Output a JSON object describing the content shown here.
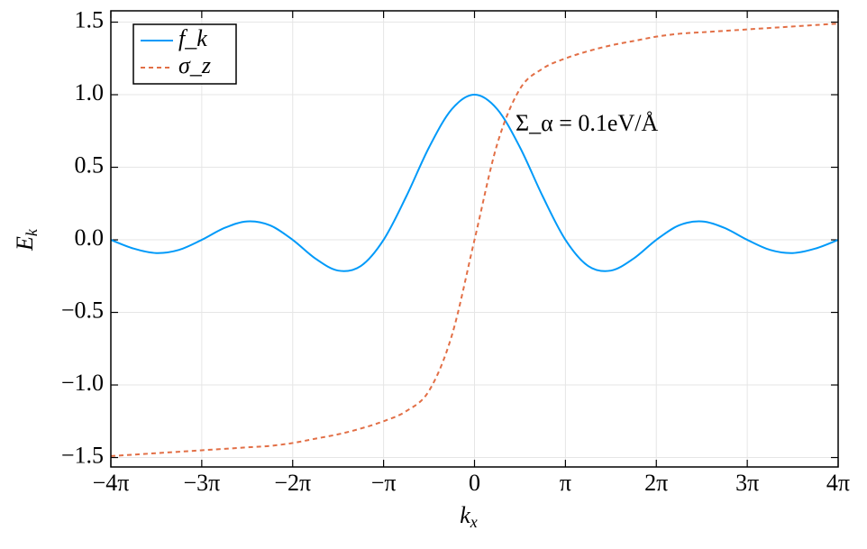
{
  "chart_data": {
    "type": "line",
    "x_label": {
      "main": "k",
      "sub": "x"
    },
    "y_label": {
      "main": "E",
      "sub": "k"
    },
    "annotation": "Σ_α = 0.1eV/Å",
    "annotation_color": "#0000ff",
    "x": [
      -12.566,
      -11.781,
      -10.996,
      -10.21,
      -9.425,
      -8.639,
      -7.854,
      -7.069,
      -6.283,
      -5.498,
      -4.712,
      -3.927,
      -3.142,
      -2.356,
      -1.571,
      -0.785,
      0,
      0.785,
      1.571,
      2.356,
      3.142,
      3.927,
      4.712,
      5.498,
      6.283,
      7.069,
      7.854,
      8.639,
      9.425,
      10.21,
      10.996,
      11.781,
      12.566
    ],
    "series": [
      {
        "name": "f_k",
        "color": "#009af9",
        "dash": "solid",
        "values": [
          0,
          -0.06,
          -0.091,
          -0.069,
          0,
          0.082,
          0.127,
          0.1,
          0,
          -0.129,
          -0.212,
          -0.18,
          0,
          0.3,
          0.637,
          0.9,
          1,
          0.9,
          0.637,
          0.3,
          0,
          -0.18,
          -0.212,
          -0.129,
          0,
          0.1,
          0.127,
          0.082,
          0,
          -0.069,
          -0.091,
          -0.06,
          0
        ]
      },
      {
        "name": "σ_z",
        "color": "#e26f46",
        "dash": "dashed",
        "values": [
          -1.49,
          -1.48,
          -1.47,
          -1.46,
          -1.45,
          -1.44,
          -1.43,
          -1.42,
          -1.4,
          -1.37,
          -1.34,
          -1.3,
          -1.25,
          -1.18,
          -1.04,
          -0.66,
          0,
          0.66,
          1.04,
          1.18,
          1.25,
          1.3,
          1.34,
          1.37,
          1.4,
          1.42,
          1.43,
          1.44,
          1.45,
          1.46,
          1.47,
          1.48,
          1.49
        ]
      }
    ],
    "xlim": [
      -12.566,
      12.566
    ],
    "xticks": [
      {
        "value": -12.566,
        "label": "−4π"
      },
      {
        "value": -9.425,
        "label": "−3π"
      },
      {
        "value": -6.283,
        "label": "−2π"
      },
      {
        "value": -3.142,
        "label": "−π"
      },
      0,
      {
        "value": 3.142,
        "label": "π"
      },
      {
        "value": 6.283,
        "label": "2π"
      },
      {
        "value": 9.425,
        "label": "3π"
      },
      {
        "value": 12.566,
        "label": "4π"
      }
    ],
    "ylim": [
      -1.565,
      1.578
    ],
    "yticks": [
      {
        "value": -1.5,
        "label": "−1.5"
      },
      {
        "value": -1.0,
        "label": "−1.0"
      },
      {
        "value": -0.5,
        "label": "−0.5"
      },
      {
        "value": 0,
        "label": "0.0"
      },
      0.5,
      {
        "value": 1.0,
        "label": "1.0"
      },
      1.5
    ],
    "grid": true,
    "legend": "top-left"
  }
}
